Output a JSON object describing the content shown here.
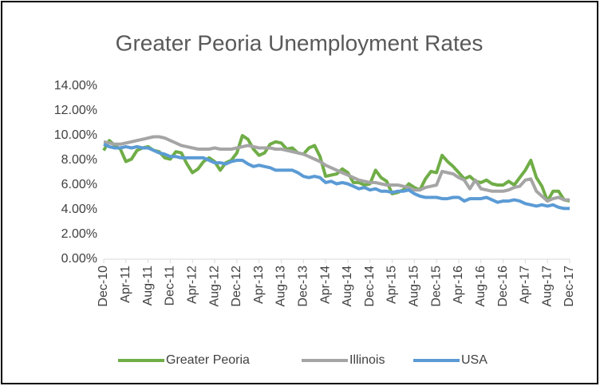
{
  "chart_data": {
    "type": "line",
    "title": "Greater Peoria Unemployment Rates",
    "categories": [
      "Dec-10",
      null,
      null,
      null,
      "Apr-11",
      null,
      null,
      null,
      "Aug-11",
      null,
      null,
      null,
      "Dec-11",
      null,
      null,
      null,
      "Apr-12",
      null,
      null,
      null,
      "Aug-12",
      null,
      null,
      null,
      "Dec-12",
      null,
      null,
      null,
      "Apr-13",
      null,
      null,
      null,
      "Aug-13",
      null,
      null,
      null,
      "Dec-13",
      null,
      null,
      null,
      "Apr-14",
      null,
      null,
      null,
      "Aug-14",
      null,
      null,
      null,
      "Dec-14",
      null,
      null,
      null,
      "Apr-15",
      null,
      null,
      null,
      "Aug-15",
      null,
      null,
      null,
      "Dec-15",
      null,
      null,
      null,
      "Apr-16",
      null,
      null,
      null,
      "Aug-16",
      null,
      null,
      null,
      "Dec-16",
      null,
      null,
      null,
      "Apr-17",
      null,
      null,
      null,
      "Aug-17",
      null,
      null,
      null,
      "Dec-17"
    ],
    "series": [
      {
        "name": "Greater Peoria",
        "color": "#70ad47",
        "values": [
          8.8,
          9.6,
          9.2,
          8.9,
          7.9,
          8.1,
          8.8,
          9.0,
          9.1,
          8.8,
          8.7,
          8.2,
          8.1,
          8.7,
          8.6,
          7.7,
          7.0,
          7.3,
          7.9,
          8.2,
          7.9,
          7.2,
          7.8,
          8.0,
          8.6,
          10.0,
          9.7,
          8.9,
          8.4,
          8.6,
          9.3,
          9.5,
          9.4,
          8.9,
          9.0,
          8.6,
          8.5,
          9.0,
          9.2,
          8.3,
          6.7,
          6.8,
          6.9,
          7.3,
          7.0,
          6.2,
          6.2,
          6.0,
          6.1,
          7.2,
          6.6,
          6.3,
          5.3,
          5.4,
          5.6,
          6.1,
          5.8,
          5.6,
          6.5,
          7.1,
          7.0,
          8.4,
          7.9,
          7.5,
          7.0,
          6.5,
          6.7,
          6.3,
          6.2,
          6.4,
          6.1,
          6.0,
          6.0,
          6.3,
          6.0,
          6.6,
          7.2,
          8.0,
          6.6,
          5.9,
          4.7,
          5.5,
          5.5,
          4.8,
          4.7
        ]
      },
      {
        "name": "Illinois",
        "color": "#a5a5a5",
        "values": [
          9.5,
          9.4,
          9.3,
          9.3,
          9.4,
          9.5,
          9.6,
          9.7,
          9.8,
          9.9,
          9.9,
          9.8,
          9.6,
          9.4,
          9.2,
          9.1,
          9.0,
          8.9,
          8.9,
          8.9,
          9.0,
          8.9,
          8.9,
          8.9,
          9.0,
          9.1,
          9.2,
          9.1,
          9.0,
          9.0,
          9.0,
          8.9,
          8.9,
          8.8,
          8.7,
          8.6,
          8.5,
          8.3,
          8.1,
          7.9,
          7.6,
          7.4,
          7.2,
          7.0,
          6.8,
          6.6,
          6.4,
          6.3,
          6.2,
          6.2,
          6.1,
          6.0,
          6.0,
          6.0,
          5.9,
          5.8,
          5.6,
          5.6,
          5.8,
          5.9,
          6.0,
          7.1,
          7.0,
          6.9,
          6.6,
          6.4,
          5.7,
          6.4,
          5.7,
          5.6,
          5.5,
          5.5,
          5.5,
          5.6,
          5.8,
          5.9,
          6.4,
          6.5,
          5.5,
          5.1,
          4.7,
          4.9,
          5.0,
          4.8,
          4.8
        ]
      },
      {
        "name": "USA",
        "color": "#5b9bd5",
        "values": [
          9.3,
          9.1,
          9.0,
          9.0,
          9.1,
          9.0,
          9.1,
          9.0,
          9.0,
          8.8,
          8.6,
          8.5,
          8.3,
          8.3,
          8.2,
          8.2,
          8.2,
          8.2,
          8.2,
          8.0,
          7.8,
          7.8,
          7.7,
          7.9,
          8.0,
          8.0,
          7.7,
          7.5,
          7.6,
          7.5,
          7.4,
          7.2,
          7.2,
          7.2,
          7.2,
          7.0,
          6.7,
          6.6,
          6.7,
          6.6,
          6.2,
          6.3,
          6.1,
          6.2,
          6.1,
          5.9,
          5.7,
          5.8,
          5.6,
          5.7,
          5.5,
          5.5,
          5.4,
          5.5,
          5.5,
          5.6,
          5.3,
          5.1,
          5.0,
          5.0,
          5.0,
          4.9,
          4.9,
          5.0,
          5.0,
          4.7,
          4.9,
          4.9,
          4.9,
          5.0,
          4.8,
          4.6,
          4.7,
          4.7,
          4.8,
          4.7,
          4.5,
          4.4,
          4.3,
          4.4,
          4.3,
          4.4,
          4.2,
          4.1,
          4.1
        ]
      }
    ],
    "ylim": [
      0,
      14
    ],
    "yticks": [
      {
        "value": 0,
        "label": "0.00%"
      },
      {
        "value": 2,
        "label": "2.00%"
      },
      {
        "value": 4,
        "label": "4.00%"
      },
      {
        "value": 6,
        "label": "6.00%"
      },
      {
        "value": 8,
        "label": "8.00%"
      },
      {
        "value": 10,
        "label": "10.00%"
      },
      {
        "value": 12,
        "label": "12.00%"
      },
      {
        "value": 14,
        "label": "14.00%"
      }
    ],
    "grid": false,
    "legend": "bottom"
  }
}
